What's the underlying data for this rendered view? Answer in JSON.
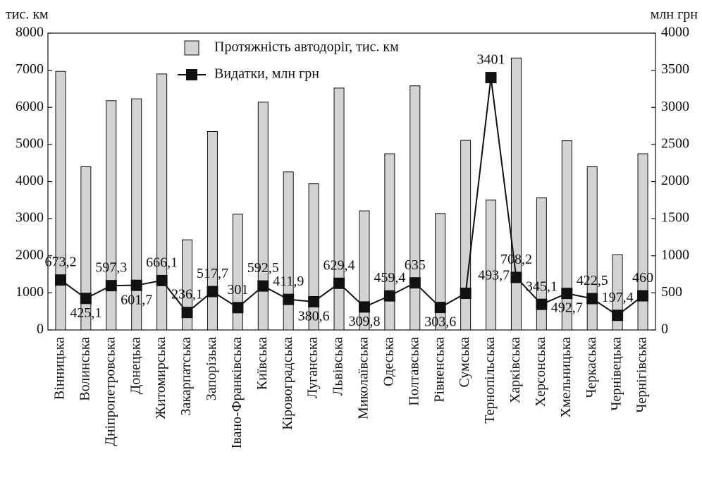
{
  "chart_data": {
    "type": "bar_line",
    "y_label": "тис. км",
    "y2_label": "млн грн",
    "categories": [
      "Вінницька",
      "Волинська",
      "Дніпропетровська",
      "Донецька",
      "Житомирська",
      "Закарпатська",
      "Запорізька",
      "Івано-Франківська",
      "Київська",
      "Кіровоградська",
      "Луганська",
      "Львівська",
      "Миколаївська",
      "Одеська",
      "Полтавська",
      "Рівненська",
      "Сумська",
      "Тернопільська",
      "Харківська",
      "Херсонська",
      "Хмельницька",
      "Черкаська",
      "Чернівецька",
      "Чернігівська"
    ],
    "series": [
      {
        "name": "Протяжність автодоріг, тис. км",
        "type": "bar",
        "color": "#d3d3d3",
        "values": [
          6970,
          4400,
          6180,
          6230,
          6900,
          2430,
          5350,
          3120,
          6140,
          4260,
          3940,
          6520,
          3210,
          4750,
          6580,
          3140,
          5110,
          3500,
          7330,
          3560,
          5100,
          4400,
          2030,
          4750
        ]
      },
      {
        "name": "Видатки, млн грн",
        "type": "line",
        "axis": "y2",
        "color": "#111111",
        "values": [
          673.2,
          425.1,
          597.3,
          601.7,
          666.1,
          236.1,
          517.7,
          301,
          592.5,
          411.9,
          380.6,
          629.4,
          309.8,
          459.4,
          635,
          303.6,
          493.7,
          3401,
          708.2,
          345.1,
          492.7,
          422.5,
          197.4,
          460
        ],
        "value_labels": [
          "673,2",
          "425,1",
          "597,3",
          "601,7",
          "666,1",
          "236,1",
          "517,7",
          "301",
          "592,5",
          "411,9",
          "380,6",
          "629,4",
          "309,8",
          "459,4",
          "635",
          "303,6",
          "493,7",
          "3401",
          "708,2",
          "345,1",
          "492,7",
          "422,5",
          "197,4",
          "460"
        ]
      }
    ],
    "ylim": [
      0,
      8000
    ],
    "yticks": [
      0,
      1000,
      2000,
      3000,
      4000,
      5000,
      6000,
      7000,
      8000
    ],
    "y2lim": [
      0,
      4000
    ],
    "y2ticks": [
      0,
      500,
      1000,
      1500,
      2000,
      2500,
      3000,
      3500,
      4000
    ]
  }
}
